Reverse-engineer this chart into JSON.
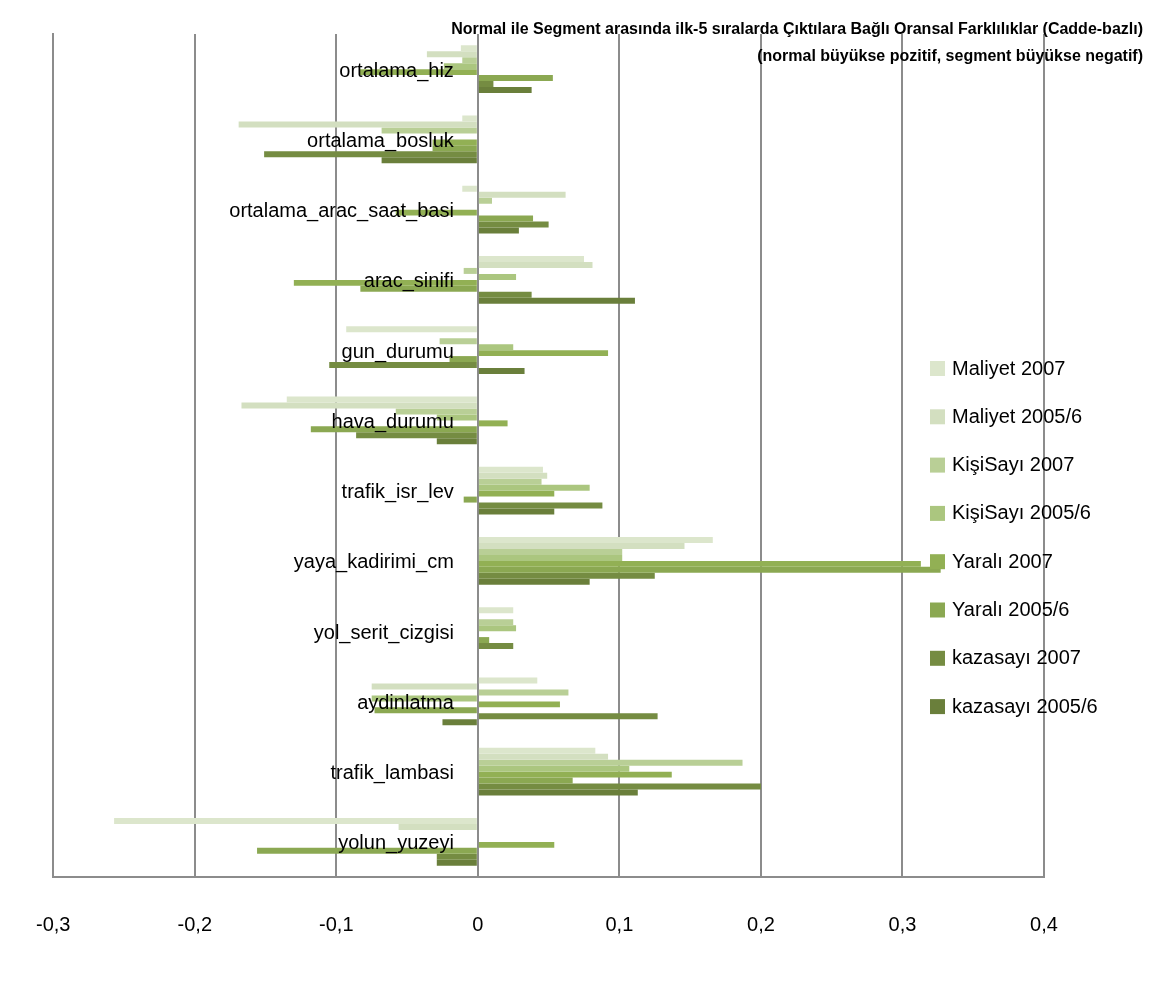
{
  "chart_data": {
    "type": "bar",
    "orientation": "horizontal",
    "title": "Normal ile Segment arasında ilk-5 sıralarda Çıktılara Bağlı Oransal Farklılıklar (Cadde-bazlı)",
    "subtitle": "(normal büyükse pozitif, segment büyükse negatif)",
    "categories": [
      "ortalama_hiz",
      "ortalama_bosluk",
      "ortalama_arac_saat_basi",
      "arac_sinifi",
      "gun_durumu",
      "hava_durumu",
      "trafik_isr_lev",
      "yaya_kadirimi_cm",
      "yol_serit_cizgisi",
      "aydinlatma",
      "trafik_lambasi",
      "yolun_yuzeyi"
    ],
    "series": [
      {
        "name": "Maliyet 2007",
        "color": "#dce6cc",
        "values": [
          -0.012,
          -0.011,
          -0.011,
          0.075,
          -0.093,
          -0.135,
          0.046,
          0.166,
          0.025,
          0.042,
          0.083,
          -0.257
        ]
      },
      {
        "name": "Maliyet 2005/6",
        "color": "#d3dfc0",
        "values": [
          -0.036,
          -0.169,
          0.062,
          0.081,
          0,
          -0.167,
          0.049,
          0.146,
          0,
          -0.075,
          0.092,
          -0.056
        ]
      },
      {
        "name": "KişiSayı 2007",
        "color": "#b9cf96",
        "values": [
          -0.011,
          -0.068,
          0.01,
          -0.01,
          -0.027,
          -0.058,
          0.045,
          0.102,
          0.025,
          0.064,
          0.187,
          0
        ]
      },
      {
        "name": "KişiSayı 2005/6",
        "color": "#abc67f",
        "values": [
          -0.024,
          null,
          0,
          0.027,
          0.025,
          -0.029,
          0.079,
          0.102,
          0.027,
          -0.075,
          0.107,
          0
        ]
      },
      {
        "name": "Yaralı 2007",
        "color": "#92b054",
        "values": [
          -0.084,
          -0.032,
          -0.058,
          -0.13,
          0.092,
          0.021,
          0.054,
          0.313,
          0,
          0.058,
          0.137,
          0.054
        ]
      },
      {
        "name": "Yaralı 2005/6",
        "color": "#8ba852",
        "values": [
          0.053,
          -0.032,
          0.039,
          -0.083,
          -0.02,
          -0.118,
          -0.01,
          0.327,
          0.008,
          -0.073,
          0.067,
          -0.156
        ]
      },
      {
        "name": "kazasayı 2007",
        "color": "#758c42",
        "values": [
          0.011,
          -0.151,
          0.05,
          0.038,
          -0.105,
          -0.086,
          0.088,
          0.125,
          0.025,
          0.127,
          0.2,
          -0.029
        ]
      },
      {
        "name": "kazasayı 2005/6",
        "color": "#6a7f3b",
        "values": [
          0.038,
          -0.068,
          0.029,
          0.111,
          0.033,
          -0.029,
          0.054,
          0.079,
          0,
          -0.025,
          0.113,
          -0.029
        ]
      }
    ],
    "xlim": [
      -0.3,
      0.4
    ],
    "xticks": [
      {
        "value": -0.3,
        "label": "-0,3"
      },
      {
        "value": -0.2,
        "label": "-0,2"
      },
      {
        "value": -0.1,
        "label": "-0,1"
      },
      0,
      {
        "value": 0.1,
        "label": "0,1"
      },
      {
        "value": 0.2,
        "label": "0,2"
      },
      {
        "value": 0.3,
        "label": "0,3"
      },
      {
        "value": 0.4,
        "label": "0,4"
      }
    ],
    "grid": "x",
    "legend": "right"
  }
}
